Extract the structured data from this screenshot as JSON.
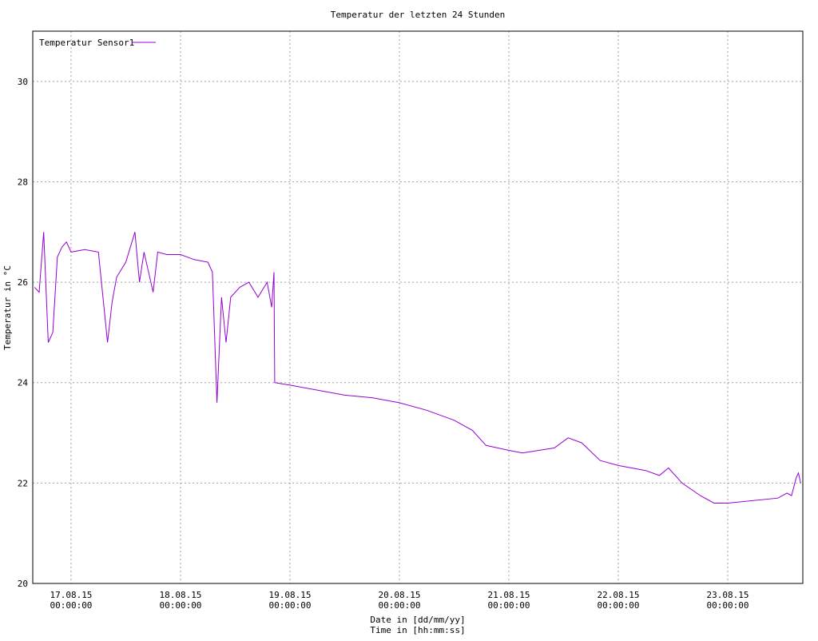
{
  "chart_data": {
    "type": "line",
    "title": "Temperatur der letzten 24 Stunden",
    "y_label": "Temperatur in °C",
    "x_label": [
      "Date in [dd/mm/yy]",
      "Time in [hh:mm:ss]"
    ],
    "legend": "top-left",
    "grid": true,
    "xlim": [
      "16.08.15 15:36:00",
      "23.08.15 16:28:00"
    ],
    "xticks": [
      "17.08.15 00:00:00",
      "18.08.15 00:00:00",
      "19.08.15 00:00:00",
      "20.08.15 00:00:00",
      "21.08.15 00:00:00",
      "22.08.15 00:00:00",
      "23.08.15 00:00:00"
    ],
    "ylim": [
      20,
      31
    ],
    "yticks": [
      20,
      22,
      24,
      26,
      28,
      30
    ],
    "x": [
      "16.08.15 16:00:00",
      "16.08.15 17:00:00",
      "16.08.15 18:00:00",
      "16.08.15 19:00:00",
      "16.08.15 20:00:00",
      "16.08.15 21:00:00",
      "16.08.15 22:00:00",
      "16.08.15 23:00:00",
      "17.08.15 00:00:00",
      "17.08.15 03:00:00",
      "17.08.15 06:00:00",
      "17.08.15 08:00:00",
      "17.08.15 09:00:00",
      "17.08.15 10:00:00",
      "17.08.15 12:00:00",
      "17.08.15 14:00:00",
      "17.08.15 15:00:00",
      "17.08.15 16:00:00",
      "17.08.15 18:00:00",
      "17.08.15 19:00:00",
      "17.08.15 21:00:00",
      "18.08.15 00:00:00",
      "18.08.15 03:00:00",
      "18.08.15 06:00:00",
      "18.08.15 07:00:00",
      "18.08.15 08:00:00",
      "18.08.15 09:00:00",
      "18.08.15 10:00:00",
      "18.08.15 11:00:00",
      "18.08.15 13:00:00",
      "18.08.15 15:00:00",
      "18.08.15 17:00:00",
      "18.08.15 19:00:00",
      "18.08.15 20:00:00",
      "18.08.15 20:30:00",
      "18.08.15 20:40:00",
      "19.08.15 00:00:00",
      "19.08.15 06:00:00",
      "19.08.15 12:00:00",
      "19.08.15 18:00:00",
      "20.08.15 00:00:00",
      "20.08.15 06:00:00",
      "20.08.15 12:00:00",
      "20.08.15 16:00:00",
      "20.08.15 19:00:00",
      "21.08.15 00:00:00",
      "21.08.15 03:00:00",
      "21.08.15 10:00:00",
      "21.08.15 13:00:00",
      "21.08.15 16:00:00",
      "21.08.15 20:00:00",
      "22.08.15 00:00:00",
      "22.08.15 06:00:00",
      "22.08.15 09:00:00",
      "22.08.15 11:00:00",
      "22.08.15 14:00:00",
      "22.08.15 18:00:00",
      "22.08.15 21:00:00",
      "23.08.15 00:00:00",
      "23.08.15 11:00:00",
      "23.08.15 13:00:00",
      "23.08.15 14:00:00",
      "23.08.15 15:00:00",
      "23.08.15 15:30:00",
      "23.08.15 16:00:00"
    ],
    "series": [
      {
        "name": "Temperatur Sensor1",
        "color": "#9400d3",
        "values": [
          25.9,
          25.8,
          27.0,
          24.8,
          25.0,
          26.5,
          26.7,
          26.8,
          26.6,
          26.65,
          26.6,
          24.8,
          25.6,
          26.1,
          26.4,
          27.0,
          26.0,
          26.6,
          25.8,
          26.6,
          26.55,
          26.55,
          26.45,
          26.4,
          26.2,
          23.6,
          25.7,
          24.8,
          25.7,
          25.9,
          26.0,
          25.7,
          26.0,
          25.5,
          26.2,
          24.0,
          23.95,
          23.85,
          23.75,
          23.7,
          23.6,
          23.45,
          23.25,
          23.05,
          22.75,
          22.65,
          22.6,
          22.7,
          22.9,
          22.8,
          22.45,
          22.35,
          22.25,
          22.15,
          22.3,
          22.0,
          21.75,
          21.6,
          21.6,
          21.7,
          21.8,
          21.75,
          22.1,
          22.2,
          22.0
        ]
      }
    ]
  }
}
